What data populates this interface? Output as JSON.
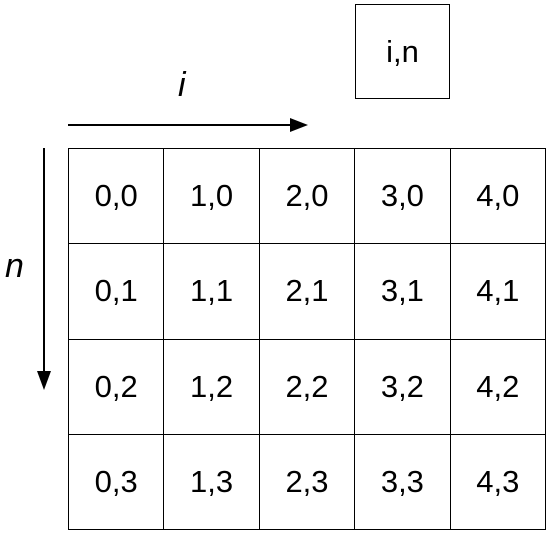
{
  "legend": {
    "label": "i,n"
  },
  "axes": {
    "horizontal": "i",
    "vertical": "n"
  },
  "grid": {
    "rows": [
      [
        "0,0",
        "1,0",
        "2,0",
        "3,0",
        "4,0"
      ],
      [
        "0,1",
        "1,1",
        "2,1",
        "3,1",
        "4,1"
      ],
      [
        "0,2",
        "1,2",
        "2,2",
        "3,2",
        "4,2"
      ],
      [
        "0,3",
        "1,3",
        "2,3",
        "3,3",
        "4,3"
      ]
    ]
  }
}
